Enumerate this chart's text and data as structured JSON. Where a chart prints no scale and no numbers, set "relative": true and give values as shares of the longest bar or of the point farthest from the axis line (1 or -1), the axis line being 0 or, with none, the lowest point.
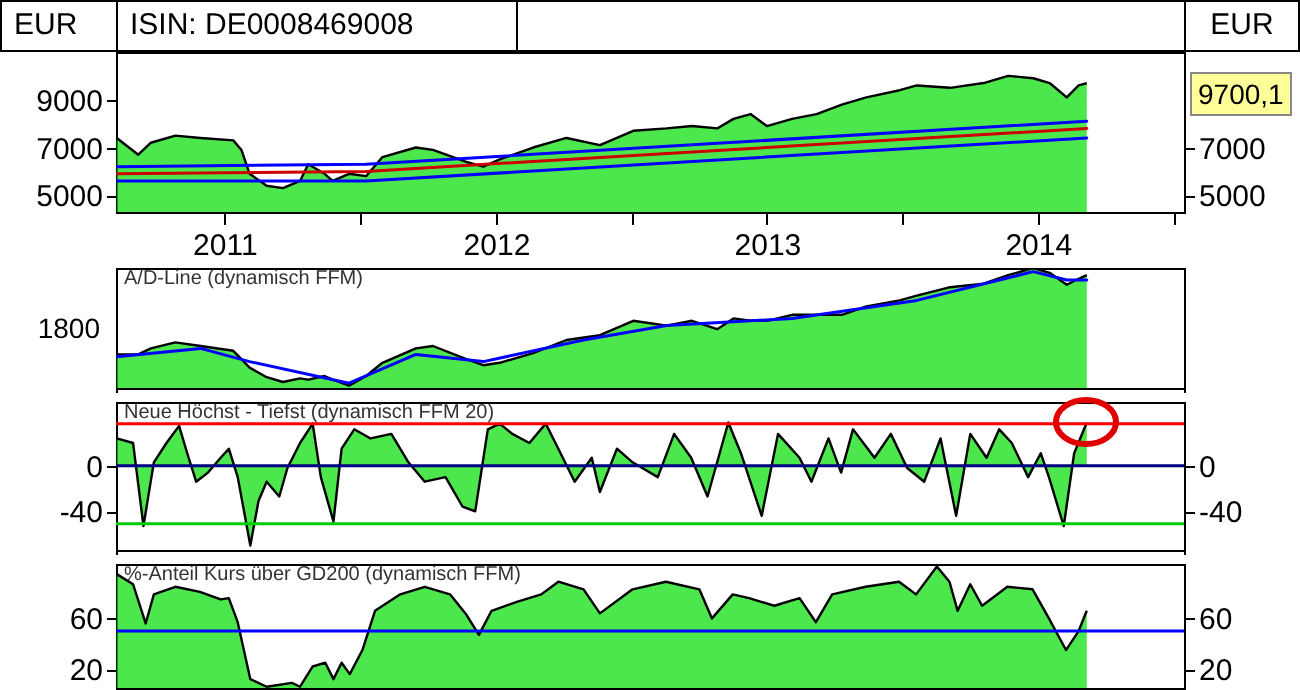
{
  "chart_data": [
    {
      "type": "area",
      "title": "ISIN: DE0008469008",
      "ylabel": "EUR",
      "y2label": "EUR",
      "annotations": [
        "9700,1"
      ],
      "xlim": [
        "2011-02-06",
        "2015-01-15"
      ],
      "xticks": [
        {
          "value": "2011-07-02",
          "label": "2011"
        },
        {
          "value": "2012-01-01",
          "label": null
        },
        {
          "value": "2012-07-02",
          "label": "2012"
        },
        {
          "value": "2013-01-01",
          "label": null
        },
        {
          "value": "2013-07-02",
          "label": "2013"
        },
        {
          "value": "2014-01-01",
          "label": null
        },
        {
          "value": "2014-07-02",
          "label": "2014"
        },
        {
          "value": "2015-01-01",
          "label": null
        }
      ],
      "ylim": [
        4300,
        11000
      ],
      "yticks": [
        5000,
        7000,
        9000
      ],
      "y2lim": [
        4300,
        11000
      ],
      "y2ticks": [
        5000,
        7000
      ],
      "x": [
        "2011-02-07",
        "2011-03-08",
        "2011-03-25",
        "2011-04-27",
        "2011-05-31",
        "2011-07-14",
        "2011-07-25",
        "2011-08-05",
        "2011-08-28",
        "2011-09-19",
        "2011-10-12",
        "2011-10-23",
        "2011-11-14",
        "2011-11-25",
        "2011-12-17",
        "2012-01-09",
        "2012-01-31",
        "2012-03-16",
        "2012-04-08",
        "2012-05-23",
        "2012-06-15",
        "2012-07-07",
        "2012-08-21",
        "2012-10-05",
        "2012-11-19",
        "2013-01-03",
        "2013-02-17",
        "2013-03-23",
        "2013-04-26",
        "2013-05-18",
        "2013-06-10",
        "2013-07-02",
        "2013-08-05",
        "2013-09-07",
        "2013-10-11",
        "2013-11-13",
        "2013-12-28",
        "2014-01-20",
        "2014-03-06",
        "2014-04-20",
        "2014-05-23",
        "2014-06-26",
        "2014-07-18",
        "2014-08-10",
        "2014-08-26",
        "2014-09-06"
      ],
      "series": [
        {
          "type": "area",
          "color": "#00dd00",
          "values": [
            7400,
            6700,
            7200,
            7500,
            7400,
            7300,
            6900,
            5900,
            5400,
            5300,
            5600,
            6300,
            5900,
            5600,
            5900,
            5800,
            6600,
            7000,
            6900,
            6400,
            6200,
            6500,
            7000,
            7400,
            7100,
            7700,
            7800,
            7900,
            7800,
            8200,
            8400,
            7900,
            8200,
            8400,
            8800,
            9100,
            9400,
            9600,
            9500,
            9700,
            10000,
            9900,
            9700,
            9100,
            9600,
            9700
          ]
        },
        {
          "type": "line",
          "axis": "y2",
          "color": "#0000ff",
          "x": [
            "2011-02-07",
            "2012-01-09",
            "2014-09-06"
          ],
          "values": [
            6200,
            6300,
            8100
          ]
        },
        {
          "type": "line",
          "axis": "y2",
          "color": "#cc0000",
          "x": [
            "2011-02-07",
            "2012-01-09",
            "2014-09-06"
          ],
          "values": [
            5900,
            6000,
            7800
          ]
        },
        {
          "type": "line",
          "axis": "y2",
          "color": "#0000ff",
          "x": [
            "2011-02-07",
            "2012-01-09",
            "2014-09-06"
          ],
          "values": [
            5600,
            5600,
            7400
          ]
        }
      ]
    },
    {
      "type": "area",
      "title": "A/D-Line (dynamisch FFM)",
      "relative": true,
      "tick_labels": false,
      "annotations": [
        "1800"
      ],
      "xlim": [
        "2011-02-06",
        "2015-01-15"
      ],
      "x": [
        "2011-02-07",
        "2011-03-08",
        "2011-03-25",
        "2011-04-27",
        "2011-05-31",
        "2011-07-14",
        "2011-07-25",
        "2011-08-05",
        "2011-08-28",
        "2011-09-19",
        "2011-10-12",
        "2011-10-23",
        "2011-11-14",
        "2011-11-25",
        "2011-12-17",
        "2012-01-09",
        "2012-01-31",
        "2012-03-16",
        "2012-04-08",
        "2012-05-23",
        "2012-06-15",
        "2012-07-07",
        "2012-08-21",
        "2012-10-05",
        "2012-11-19",
        "2013-01-03",
        "2013-02-17",
        "2013-03-23",
        "2013-04-26",
        "2013-05-18",
        "2013-06-10",
        "2013-07-02",
        "2013-08-05",
        "2013-09-07",
        "2013-10-11",
        "2013-11-13",
        "2013-12-28",
        "2014-01-20",
        "2014-03-06",
        "2014-04-20",
        "2014-05-23",
        "2014-06-26",
        "2014-07-18",
        "2014-08-10",
        "2014-08-26",
        "2014-09-06"
      ],
      "series": [
        {
          "type": "area",
          "color": "#00dd00",
          "values": [
            0.28,
            0.28,
            0.33,
            0.38,
            0.35,
            0.31,
            0.24,
            0.17,
            0.09,
            0.05,
            0.08,
            0.07,
            0.1,
            0.07,
            0.02,
            0.1,
            0.21,
            0.33,
            0.35,
            0.24,
            0.19,
            0.21,
            0.29,
            0.4,
            0.44,
            0.56,
            0.52,
            0.56,
            0.49,
            0.58,
            0.56,
            0.56,
            0.61,
            0.61,
            0.61,
            0.68,
            0.73,
            0.77,
            0.84,
            0.87,
            0.94,
            1,
            0.96,
            0.86,
            0.91,
            0.94
          ]
        },
        {
          "type": "line",
          "color": "#0000ff",
          "x": [
            "2011-02-07",
            "2011-05-31",
            "2011-08-05",
            "2011-12-17",
            "2012-03-16",
            "2012-06-15",
            "2012-10-28",
            "2013-02-17",
            "2013-08-05",
            "2014-01-20",
            "2014-06-26",
            "2014-08-10",
            "2014-09-06"
          ],
          "values": [
            0.26,
            0.33,
            0.22,
            0.04,
            0.28,
            0.22,
            0.4,
            0.52,
            0.58,
            0.73,
            0.97,
            0.9,
            0.9
          ]
        }
      ]
    },
    {
      "type": "area",
      "title": "Neue Höchst - Tiefst (dynamisch FFM 20)",
      "tick_labels": "y",
      "xlim": [
        "2011-02-06",
        "2015-01-15"
      ],
      "ylim": [
        -74,
        56
      ],
      "yticks": [
        -40,
        0
      ],
      "y2lim": [
        -74,
        56
      ],
      "y2ticks": [
        -40,
        0
      ],
      "ref_lines": [
        {
          "axis": "y2",
          "value": 37,
          "color": "#ff0000"
        },
        {
          "axis": "y2",
          "value": 0,
          "color": "#000080"
        },
        {
          "axis": "y2",
          "value": -51,
          "color": "#00cc00"
        }
      ],
      "x": [
        "2011-02-07",
        "2011-03-01",
        "2011-03-15",
        "2011-03-29",
        "2011-04-15",
        "2011-05-02",
        "2011-05-13",
        "2011-05-25",
        "2011-06-10",
        "2011-06-27",
        "2011-07-08",
        "2011-07-20",
        "2011-08-06",
        "2011-08-17",
        "2011-08-28",
        "2011-09-14",
        "2011-09-25",
        "2011-10-12",
        "2011-10-29",
        "2011-11-09",
        "2011-11-26",
        "2011-12-07",
        "2011-12-24",
        "2012-01-15",
        "2012-02-12",
        "2012-03-06",
        "2012-03-28",
        "2012-04-25",
        "2012-05-18",
        "2012-06-04",
        "2012-06-21",
        "2012-07-07",
        "2012-07-24",
        "2012-08-16",
        "2012-09-07",
        "2012-09-24",
        "2012-10-16",
        "2012-11-08",
        "2012-11-19",
        "2012-12-12",
        "2013-01-02",
        "2013-02-05",
        "2013-02-27",
        "2013-03-22",
        "2013-04-13",
        "2013-05-11",
        "2013-05-28",
        "2013-06-25",
        "2013-07-17",
        "2013-08-15",
        "2013-08-31",
        "2013-09-23",
        "2013-10-10",
        "2013-10-26",
        "2013-11-24",
        "2013-12-16",
        "2014-01-07",
        "2014-01-30",
        "2014-02-21",
        "2014-03-14",
        "2014-04-02",
        "2014-04-24",
        "2014-05-11",
        "2014-05-28",
        "2014-06-19",
        "2014-07-06",
        "2014-07-17",
        "2014-08-06",
        "2014-08-20",
        "2014-09-06"
      ],
      "series": [
        {
          "type": "area",
          "color": "#00dd00",
          "values": [
            24,
            20,
            -53,
            3,
            20,
            35,
            11,
            -14,
            -6,
            7,
            15,
            -10,
            -70,
            -31,
            -14,
            -27,
            -2,
            20,
            37,
            -10,
            -49,
            15,
            32,
            24,
            28,
            3,
            -14,
            -10,
            -36,
            -40,
            32,
            37,
            28,
            20,
            37,
            15,
            -14,
            7,
            -23,
            15,
            3,
            -10,
            28,
            7,
            -27,
            38,
            11,
            -44,
            28,
            7,
            -14,
            24,
            -6,
            32,
            7,
            28,
            -2,
            -14,
            24,
            -44,
            28,
            7,
            32,
            20,
            -10,
            11,
            -10,
            -53,
            11,
            38
          ]
        }
      ]
    },
    {
      "type": "area",
      "title": "%-Anteil Kurs über GD200 (dynamisch FFM)",
      "tick_labels": "y",
      "xlim": [
        "2011-02-06",
        "2015-01-15"
      ],
      "ylim": [
        5,
        103
      ],
      "yticks": [
        20,
        60
      ],
      "y2lim": [
        5,
        103
      ],
      "y2ticks": [
        20,
        60
      ],
      "ref_lines": [
        {
          "axis": "y2",
          "value": 50,
          "color": "#0000ff"
        }
      ],
      "x": [
        "2011-02-07",
        "2011-03-01",
        "2011-03-18",
        "2011-03-29",
        "2011-04-27",
        "2011-05-30",
        "2011-06-27",
        "2011-07-08",
        "2011-07-20",
        "2011-08-06",
        "2011-08-28",
        "2011-10-01",
        "2011-10-12",
        "2011-10-29",
        "2011-11-15",
        "2011-11-26",
        "2011-12-07",
        "2011-12-18",
        "2012-01-04",
        "2012-01-21",
        "2012-02-24",
        "2012-03-28",
        "2012-05-01",
        "2012-05-23",
        "2012-06-09",
        "2012-06-26",
        "2012-07-30",
        "2012-09-01",
        "2012-09-24",
        "2012-10-28",
        "2012-11-19",
        "2013-01-02",
        "2013-02-16",
        "2013-04-02",
        "2013-04-19",
        "2013-05-17",
        "2013-06-08",
        "2013-07-12",
        "2013-08-15",
        "2013-09-06",
        "2013-09-28",
        "2013-11-12",
        "2013-12-27",
        "2014-01-19",
        "2014-02-16",
        "2014-03-05",
        "2014-03-16",
        "2014-04-02",
        "2014-04-18",
        "2014-05-22",
        "2014-06-25",
        "2014-07-17",
        "2014-08-09",
        "2014-08-26",
        "2014-09-06"
      ],
      "series": [
        {
          "type": "area",
          "color": "#00dd00",
          "values": [
            95,
            87,
            56,
            79,
            85,
            81,
            75,
            76,
            57,
            12,
            6,
            9,
            6,
            22,
            25,
            12,
            25,
            16,
            35,
            66,
            79,
            85,
            79,
            63,
            47,
            66,
            73,
            79,
            89,
            83,
            64,
            83,
            89,
            83,
            60,
            79,
            76,
            70,
            76,
            57,
            79,
            85,
            89,
            79,
            101,
            89,
            66,
            87,
            70,
            85,
            83,
            60,
            35,
            50,
            66
          ]
        }
      ]
    }
  ]
}
